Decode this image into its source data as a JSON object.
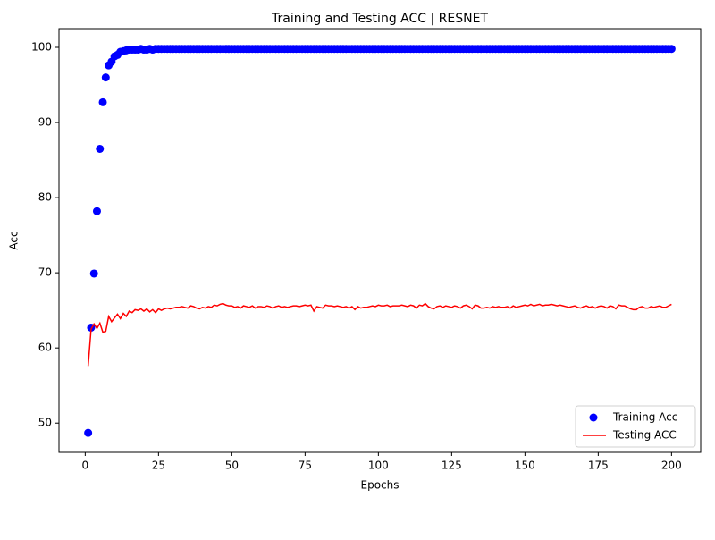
{
  "chart_data": {
    "type": "line",
    "title": "Training and Testing ACC | RESNET",
    "xlabel": "Epochs",
    "ylabel": "Acc",
    "x": [
      1,
      2,
      3,
      4,
      5,
      6,
      7,
      8,
      9,
      10,
      11,
      12,
      13,
      14,
      15,
      16,
      17,
      18,
      19,
      20,
      21,
      22,
      23,
      24,
      25,
      26,
      27,
      28,
      29,
      30,
      31,
      32,
      33,
      34,
      35,
      36,
      37,
      38,
      39,
      40,
      41,
      42,
      43,
      44,
      45,
      46,
      47,
      48,
      49,
      50,
      51,
      52,
      53,
      54,
      55,
      56,
      57,
      58,
      59,
      60,
      61,
      62,
      63,
      64,
      65,
      66,
      67,
      68,
      69,
      70,
      71,
      72,
      73,
      74,
      75,
      76,
      77,
      78,
      79,
      80,
      81,
      82,
      83,
      84,
      85,
      86,
      87,
      88,
      89,
      90,
      91,
      92,
      93,
      94,
      95,
      96,
      97,
      98,
      99,
      100,
      101,
      102,
      103,
      104,
      105,
      106,
      107,
      108,
      109,
      110,
      111,
      112,
      113,
      114,
      115,
      116,
      117,
      118,
      119,
      120,
      121,
      122,
      123,
      124,
      125,
      126,
      127,
      128,
      129,
      130,
      131,
      132,
      133,
      134,
      135,
      136,
      137,
      138,
      139,
      140,
      141,
      142,
      143,
      144,
      145,
      146,
      147,
      148,
      149,
      150,
      151,
      152,
      153,
      154,
      155,
      156,
      157,
      158,
      159,
      160,
      161,
      162,
      163,
      164,
      165,
      166,
      167,
      168,
      169,
      170,
      171,
      172,
      173,
      174,
      175,
      176,
      177,
      178,
      179,
      180,
      181,
      182,
      183,
      184,
      185,
      186,
      187,
      188,
      189,
      190,
      191,
      192,
      193,
      194,
      195,
      196,
      197,
      198,
      199,
      200
    ],
    "series": [
      {
        "name": "Training Acc",
        "color": "#0000ff",
        "mode": "markers",
        "values": [
          48.7,
          62.7,
          69.9,
          78.2,
          86.5,
          92.7,
          96.0,
          97.6,
          98.1,
          98.8,
          99.0,
          99.4,
          99.5,
          99.6,
          99.7,
          99.7,
          99.7,
          99.7,
          99.8,
          99.7,
          99.7,
          99.8,
          99.7,
          99.8,
          99.8,
          99.8,
          99.8,
          99.8,
          99.8,
          99.8,
          99.8,
          99.8,
          99.8,
          99.8,
          99.8,
          99.8,
          99.8,
          99.8,
          99.8,
          99.8,
          99.8,
          99.8,
          99.8,
          99.8,
          99.8,
          99.8,
          99.8,
          99.8,
          99.8,
          99.8,
          99.8,
          99.8,
          99.8,
          99.8,
          99.8,
          99.8,
          99.8,
          99.8,
          99.8,
          99.8,
          99.8,
          99.8,
          99.8,
          99.8,
          99.8,
          99.8,
          99.8,
          99.8,
          99.8,
          99.8,
          99.8,
          99.8,
          99.8,
          99.8,
          99.8,
          99.8,
          99.8,
          99.8,
          99.8,
          99.8,
          99.8,
          99.8,
          99.8,
          99.8,
          99.8,
          99.8,
          99.8,
          99.8,
          99.8,
          99.8,
          99.8,
          99.8,
          99.8,
          99.8,
          99.8,
          99.8,
          99.8,
          99.8,
          99.8,
          99.8,
          99.8,
          99.8,
          99.8,
          99.8,
          99.8,
          99.8,
          99.8,
          99.8,
          99.8,
          99.8,
          99.8,
          99.8,
          99.8,
          99.8,
          99.8,
          99.8,
          99.8,
          99.8,
          99.8,
          99.8,
          99.8,
          99.8,
          99.8,
          99.8,
          99.8,
          99.8,
          99.8,
          99.8,
          99.8,
          99.8,
          99.8,
          99.8,
          99.8,
          99.8,
          99.8,
          99.8,
          99.8,
          99.8,
          99.8,
          99.8,
          99.8,
          99.8,
          99.8,
          99.8,
          99.8,
          99.8,
          99.8,
          99.8,
          99.8,
          99.8,
          99.8,
          99.8,
          99.8,
          99.8,
          99.8,
          99.8,
          99.8,
          99.8,
          99.8,
          99.8,
          99.8,
          99.8,
          99.8,
          99.8,
          99.8,
          99.8,
          99.8,
          99.8,
          99.8,
          99.8,
          99.8,
          99.8,
          99.8,
          99.8,
          99.8,
          99.8,
          99.8,
          99.8,
          99.8,
          99.8,
          99.8,
          99.8,
          99.8,
          99.8,
          99.8,
          99.8,
          99.8,
          99.8,
          99.8,
          99.8,
          99.8,
          99.8,
          99.8,
          99.8,
          99.8,
          99.8,
          99.8,
          99.8,
          99.8,
          99.8
        ]
      },
      {
        "name": "Testing ACC",
        "color": "#ff0000",
        "mode": "line",
        "values": [
          57.6,
          62.5,
          63.2,
          62.6,
          63.3,
          62.1,
          62.2,
          64.2,
          63.5,
          64.0,
          64.5,
          63.9,
          64.6,
          64.2,
          64.9,
          64.7,
          65.1,
          65.0,
          65.2,
          64.9,
          65.2,
          64.8,
          65.1,
          64.7,
          65.2,
          65.0,
          65.2,
          65.3,
          65.2,
          65.3,
          65.4,
          65.4,
          65.5,
          65.4,
          65.3,
          65.6,
          65.5,
          65.3,
          65.2,
          65.4,
          65.3,
          65.5,
          65.4,
          65.7,
          65.6,
          65.8,
          65.9,
          65.7,
          65.6,
          65.6,
          65.4,
          65.5,
          65.3,
          65.6,
          65.5,
          65.4,
          65.6,
          65.3,
          65.5,
          65.5,
          65.4,
          65.6,
          65.5,
          65.3,
          65.5,
          65.6,
          65.4,
          65.5,
          65.4,
          65.5,
          65.6,
          65.6,
          65.5,
          65.6,
          65.7,
          65.6,
          65.7,
          64.9,
          65.5,
          65.4,
          65.3,
          65.7,
          65.6,
          65.6,
          65.5,
          65.6,
          65.5,
          65.4,
          65.5,
          65.3,
          65.5,
          65.1,
          65.5,
          65.3,
          65.4,
          65.4,
          65.5,
          65.6,
          65.5,
          65.7,
          65.6,
          65.6,
          65.7,
          65.5,
          65.6,
          65.6,
          65.6,
          65.7,
          65.6,
          65.5,
          65.7,
          65.6,
          65.3,
          65.7,
          65.6,
          65.9,
          65.5,
          65.3,
          65.2,
          65.5,
          65.6,
          65.4,
          65.6,
          65.5,
          65.4,
          65.6,
          65.5,
          65.3,
          65.6,
          65.7,
          65.5,
          65.2,
          65.7,
          65.6,
          65.3,
          65.3,
          65.4,
          65.3,
          65.5,
          65.4,
          65.5,
          65.4,
          65.4,
          65.5,
          65.3,
          65.6,
          65.4,
          65.5,
          65.6,
          65.7,
          65.6,
          65.8,
          65.6,
          65.7,
          65.8,
          65.6,
          65.7,
          65.7,
          65.8,
          65.7,
          65.6,
          65.7,
          65.6,
          65.5,
          65.4,
          65.5,
          65.6,
          65.4,
          65.3,
          65.5,
          65.6,
          65.4,
          65.5,
          65.3,
          65.5,
          65.6,
          65.5,
          65.3,
          65.6,
          65.5,
          65.2,
          65.7,
          65.6,
          65.6,
          65.4,
          65.2,
          65.1,
          65.1,
          65.4,
          65.5,
          65.3,
          65.3,
          65.5,
          65.4,
          65.5,
          65.6,
          65.4,
          65.4,
          65.6,
          65.8
        ]
      }
    ],
    "xlim": [
      -8.95,
      209.95
    ],
    "ylim": [
      46.1,
      102.5
    ],
    "xticks": [
      0,
      25,
      50,
      75,
      100,
      125,
      150,
      175,
      200
    ],
    "yticks": [
      50,
      60,
      70,
      80,
      90,
      100
    ],
    "legend": "lower right"
  }
}
